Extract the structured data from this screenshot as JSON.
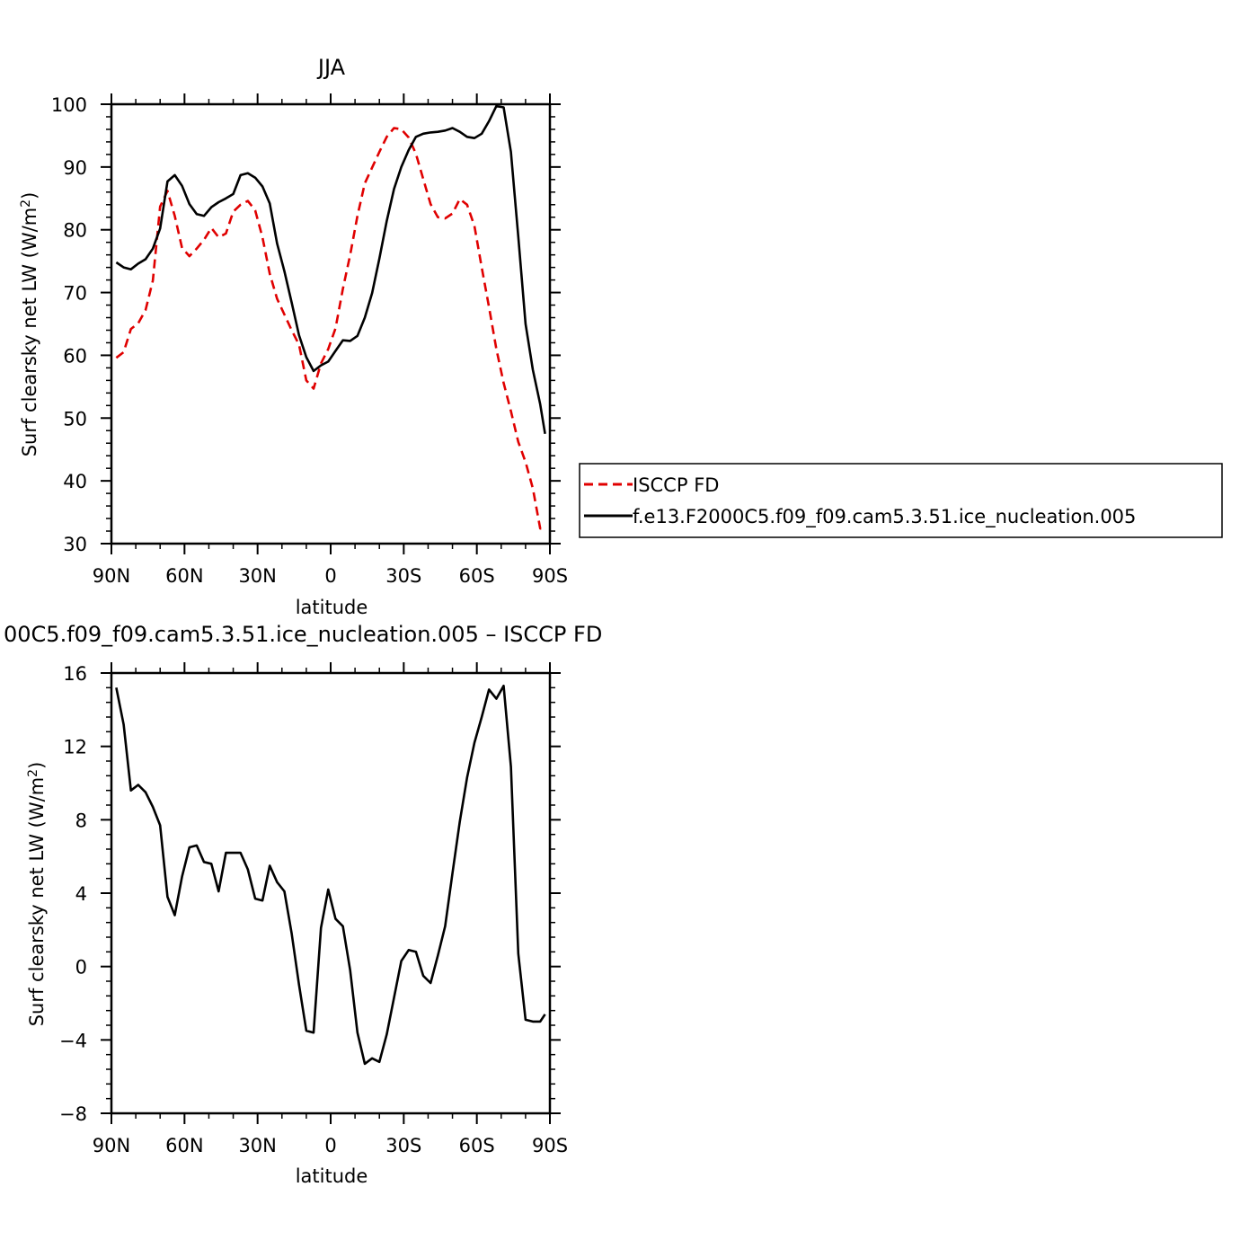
{
  "chart_data": [
    {
      "type": "line",
      "title": "JJA",
      "xlabel": "latitude",
      "ylabel_main": "Surf clearsky net LW (W/m",
      "ylabel_sup": "2",
      "ylabel_close": ")",
      "xlim": [
        -90,
        90
      ],
      "ylim": [
        30,
        100
      ],
      "xticks": [
        -90,
        -60,
        -30,
        0,
        30,
        60,
        90
      ],
      "xtick_labels": [
        "90N",
        "60N",
        "30N",
        "0",
        "30S",
        "60S",
        "90S"
      ],
      "yticks": [
        30,
        40,
        50,
        60,
        70,
        80,
        90,
        100
      ],
      "ytick_labels": [
        "30",
        "40",
        "50",
        "60",
        "70",
        "80",
        "90",
        "100"
      ],
      "legend_position": "right",
      "series": [
        {
          "name": "ISCCP FD",
          "color": "#e00000",
          "dash": "dashed",
          "x": [
            -88,
            -85,
            -82,
            -79,
            -76,
            -73,
            -70,
            -67,
            -64,
            -61,
            -58,
            -55,
            -52,
            -49,
            -46,
            -43,
            -40,
            -37,
            -34,
            -31,
            -28,
            -25,
            -22,
            -19,
            -16,
            -13,
            -10,
            -7,
            -4,
            -1,
            2,
            5,
            8,
            11,
            14,
            17,
            20,
            23,
            26,
            29,
            32,
            35,
            38,
            41,
            44,
            47,
            50,
            53,
            56,
            59,
            62,
            65,
            68,
            71,
            74,
            77,
            80,
            83,
            86,
            88
          ],
          "values": [
            59.6,
            60.5,
            64.2,
            65.1,
            67.2,
            71.9,
            83.7,
            86.2,
            82.2,
            77.1,
            75.8,
            77.0,
            78.4,
            80.3,
            78.8,
            79.4,
            82.9,
            84.0,
            84.6,
            83.1,
            78.8,
            73.0,
            69.0,
            66.5,
            64.0,
            61.7,
            56.0,
            54.7,
            58.7,
            61.0,
            64.3,
            70.6,
            76.0,
            82.2,
            87.4,
            89.9,
            92.4,
            94.8,
            96.2,
            96.0,
            94.7,
            92.1,
            88.1,
            84.1,
            82.0,
            81.8,
            82.6,
            84.9,
            84.0,
            80.6,
            74.0,
            67.7,
            61.0,
            55.6,
            51.1,
            46.2,
            43.0,
            38.8,
            32.4,
            32.4
          ]
        },
        {
          "name": "f.e13.F2000C5.f09_f09.cam5.3.51.ice_nucleation.005",
          "color": "#000000",
          "dash": "solid",
          "x": [
            -88,
            -85,
            -82,
            -79,
            -76,
            -73,
            -70,
            -67,
            -64,
            -61,
            -58,
            -55,
            -52,
            -49,
            -46,
            -43,
            -40,
            -37,
            -34,
            -31,
            -28,
            -25,
            -22,
            -19,
            -16,
            -13,
            -10,
            -7,
            -4,
            -1,
            2,
            5,
            8,
            11,
            14,
            17,
            20,
            23,
            26,
            29,
            32,
            35,
            38,
            41,
            44,
            47,
            50,
            53,
            56,
            59,
            62,
            65,
            68,
            71,
            74,
            77,
            80,
            83,
            86,
            88
          ],
          "values": [
            74.8,
            74.0,
            73.7,
            74.6,
            75.3,
            77.0,
            80.2,
            87.7,
            88.7,
            87.0,
            84.1,
            82.5,
            82.2,
            83.6,
            84.4,
            85.0,
            85.7,
            88.7,
            89.0,
            88.3,
            86.9,
            84.2,
            77.8,
            73.4,
            68.4,
            63.2,
            59.7,
            57.5,
            58.4,
            59.0,
            60.7,
            62.4,
            62.3,
            63.1,
            66.0,
            69.9,
            75.4,
            81.4,
            86.5,
            90.0,
            92.7,
            94.8,
            95.3,
            95.5,
            95.6,
            95.8,
            96.2,
            95.6,
            94.8,
            94.6,
            95.3,
            97.3,
            99.7,
            99.5,
            92.4,
            78.9,
            65.0,
            57.7,
            52.2,
            47.5
          ]
        }
      ]
    },
    {
      "type": "line",
      "title": "00C5.f09_f09.cam5.3.51.ice_nucleation.005 – ISCCP FD",
      "xlabel": "latitude",
      "ylabel_main": "Surf clearsky net LW (W/m",
      "ylabel_sup": "2",
      "ylabel_close": ")",
      "xlim": [
        -90,
        90
      ],
      "ylim": [
        -8,
        16
      ],
      "xticks": [
        -90,
        -60,
        -30,
        0,
        30,
        60,
        90
      ],
      "xtick_labels": [
        "90N",
        "60N",
        "30N",
        "0",
        "30S",
        "60S",
        "90S"
      ],
      "yticks": [
        -8,
        -4,
        0,
        4,
        8,
        12,
        16
      ],
      "ytick_labels": [
        "−8",
        "−4",
        "0",
        "4",
        "8",
        "12",
        "16"
      ],
      "series": [
        {
          "color": "#000000",
          "dash": "solid",
          "x": [
            -88,
            -85,
            -82,
            -79,
            -76,
            -73,
            -70,
            -67,
            -64,
            -61,
            -58,
            -55,
            -52,
            -49,
            -46,
            -43,
            -40,
            -37,
            -34,
            -31,
            -28,
            -25,
            -22,
            -19,
            -16,
            -13,
            -10,
            -7,
            -4,
            -1,
            2,
            5,
            8,
            11,
            14,
            17,
            20,
            23,
            26,
            29,
            32,
            35,
            38,
            41,
            44,
            47,
            50,
            53,
            56,
            59,
            62,
            65,
            68,
            71,
            74,
            77,
            80,
            83,
            86,
            88
          ],
          "values": [
            15.2,
            13.2,
            9.6,
            9.9,
            9.5,
            8.7,
            7.7,
            3.8,
            2.8,
            4.9,
            6.5,
            6.6,
            5.7,
            5.6,
            4.1,
            6.2,
            6.2,
            6.2,
            5.3,
            3.7,
            3.6,
            5.5,
            4.6,
            4.1,
            1.8,
            -1.0,
            -3.5,
            -3.6,
            2.1,
            4.2,
            2.6,
            2.2,
            -0.2,
            -3.6,
            -5.3,
            -5.0,
            -5.2,
            -3.7,
            -1.7,
            0.3,
            0.9,
            0.8,
            -0.5,
            -0.9,
            0.6,
            2.2,
            5.1,
            7.9,
            10.3,
            12.2,
            13.6,
            15.1,
            14.6,
            15.3,
            10.9,
            0.7,
            -2.9,
            -3.0,
            -3.0,
            -2.6
          ]
        }
      ]
    }
  ],
  "legend": {
    "items": [
      {
        "label": "ISCCP FD",
        "color": "#e00000",
        "dash": "dashed"
      },
      {
        "label": "f.e13.F2000C5.f09_f09.cam5.3.51.ice_nucleation.005",
        "color": "#000000",
        "dash": "solid"
      }
    ]
  }
}
